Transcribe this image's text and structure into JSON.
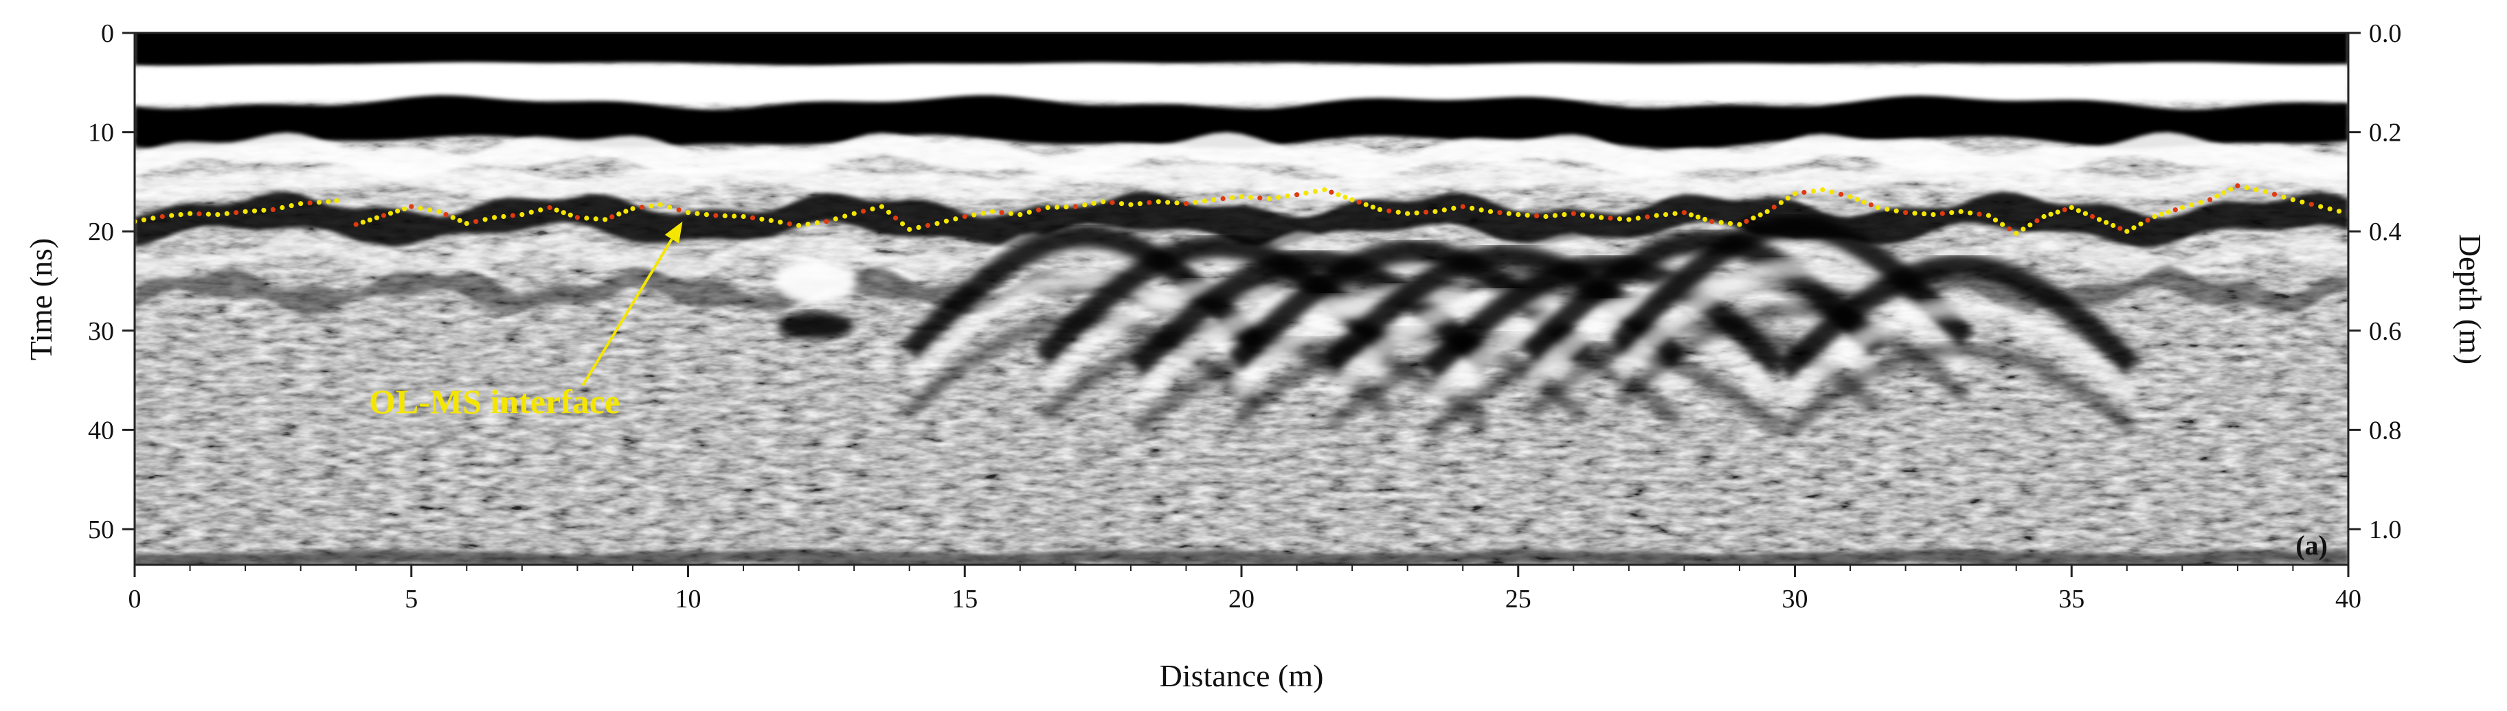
{
  "chart_data": {
    "type": "heatmap",
    "description_kind": "ground-penetrating radar radargram",
    "xlabel": "Distance (m)",
    "ylabel_left": "Time (ns)",
    "ylabel_right": "Depth (m)",
    "xlim": [
      0,
      40
    ],
    "ylim_time": [
      0,
      53
    ],
    "ylim_depth": [
      0.0,
      1.06
    ],
    "x_ticks": [
      0,
      5,
      10,
      15,
      20,
      25,
      30,
      35,
      40
    ],
    "x_tick_labels": [
      "0",
      "5",
      "10",
      "15",
      "20",
      "25",
      "30",
      "35",
      "40"
    ],
    "time_ticks": [
      0,
      10,
      20,
      30,
      40,
      50
    ],
    "time_tick_labels": [
      "0",
      "10",
      "20",
      "30",
      "40",
      "50"
    ],
    "depth_ticks": [
      0.0,
      0.2,
      0.4,
      0.6,
      0.8,
      1.0
    ],
    "depth_tick_labels": [
      "0.0",
      "0.2",
      "0.4",
      "0.6",
      "0.8",
      "1.0"
    ],
    "annotation": {
      "text": "OL-MS interface",
      "arrow_from": {
        "x": 8.1,
        "t": 35.5
      },
      "arrow_to": {
        "x": 9.9,
        "t": 19.0
      }
    },
    "panel_label": "(a)",
    "colors": {
      "interface_dots": "#f4e600",
      "interface_dots_alt": "#e03a10",
      "annotation": "#f4e600"
    },
    "interface_line": {
      "name": "OL-MS interface",
      "x": [
        0.0,
        0.5,
        1.0,
        1.5,
        2.0,
        2.5,
        3.0,
        3.5,
        3.8,
        4.0,
        4.5,
        5.0,
        5.5,
        6.0,
        6.5,
        7.0,
        7.5,
        8.0,
        8.5,
        9.0,
        9.5,
        10.0,
        10.5,
        11.0,
        11.5,
        12.0,
        12.5,
        13.0,
        13.5,
        14.0,
        14.5,
        15.0,
        15.5,
        16.0,
        16.5,
        17.0,
        17.5,
        18.0,
        18.5,
        19.0,
        19.5,
        20.0,
        20.5,
        21.0,
        21.5,
        22.0,
        22.5,
        23.0,
        23.5,
        24.0,
        24.5,
        25.0,
        25.5,
        26.0,
        26.5,
        27.0,
        27.5,
        28.0,
        28.5,
        29.0,
        29.5,
        30.0,
        30.5,
        31.0,
        31.5,
        32.0,
        32.5,
        33.0,
        33.5,
        34.0,
        34.5,
        35.0,
        35.5,
        36.0,
        36.5,
        37.0,
        37.5,
        38.0,
        38.5,
        39.0,
        39.5,
        40.0
      ],
      "t": [
        19.0,
        18.5,
        18.2,
        18.3,
        18.0,
        17.8,
        17.2,
        17.0,
        16.8,
        19.3,
        18.4,
        17.5,
        18.0,
        19.2,
        18.6,
        18.3,
        17.6,
        18.6,
        18.8,
        17.7,
        17.3,
        18.1,
        18.4,
        18.5,
        18.9,
        19.4,
        19.0,
        18.2,
        17.5,
        19.8,
        19.2,
        18.5,
        18.0,
        18.3,
        17.6,
        17.5,
        17.0,
        17.3,
        17.0,
        17.2,
        16.8,
        16.5,
        16.7,
        16.3,
        15.8,
        16.8,
        17.8,
        18.2,
        18.0,
        17.5,
        18.0,
        18.3,
        18.5,
        18.2,
        18.6,
        18.8,
        18.4,
        18.1,
        19.0,
        19.3,
        18.0,
        16.2,
        15.8,
        16.5,
        17.6,
        18.1,
        18.3,
        18.0,
        18.4,
        20.2,
        18.5,
        17.6,
        18.8,
        20.0,
        18.5,
        17.6,
        16.8,
        15.4,
        16.0,
        16.8,
        17.5,
        18.2
      ]
    }
  }
}
